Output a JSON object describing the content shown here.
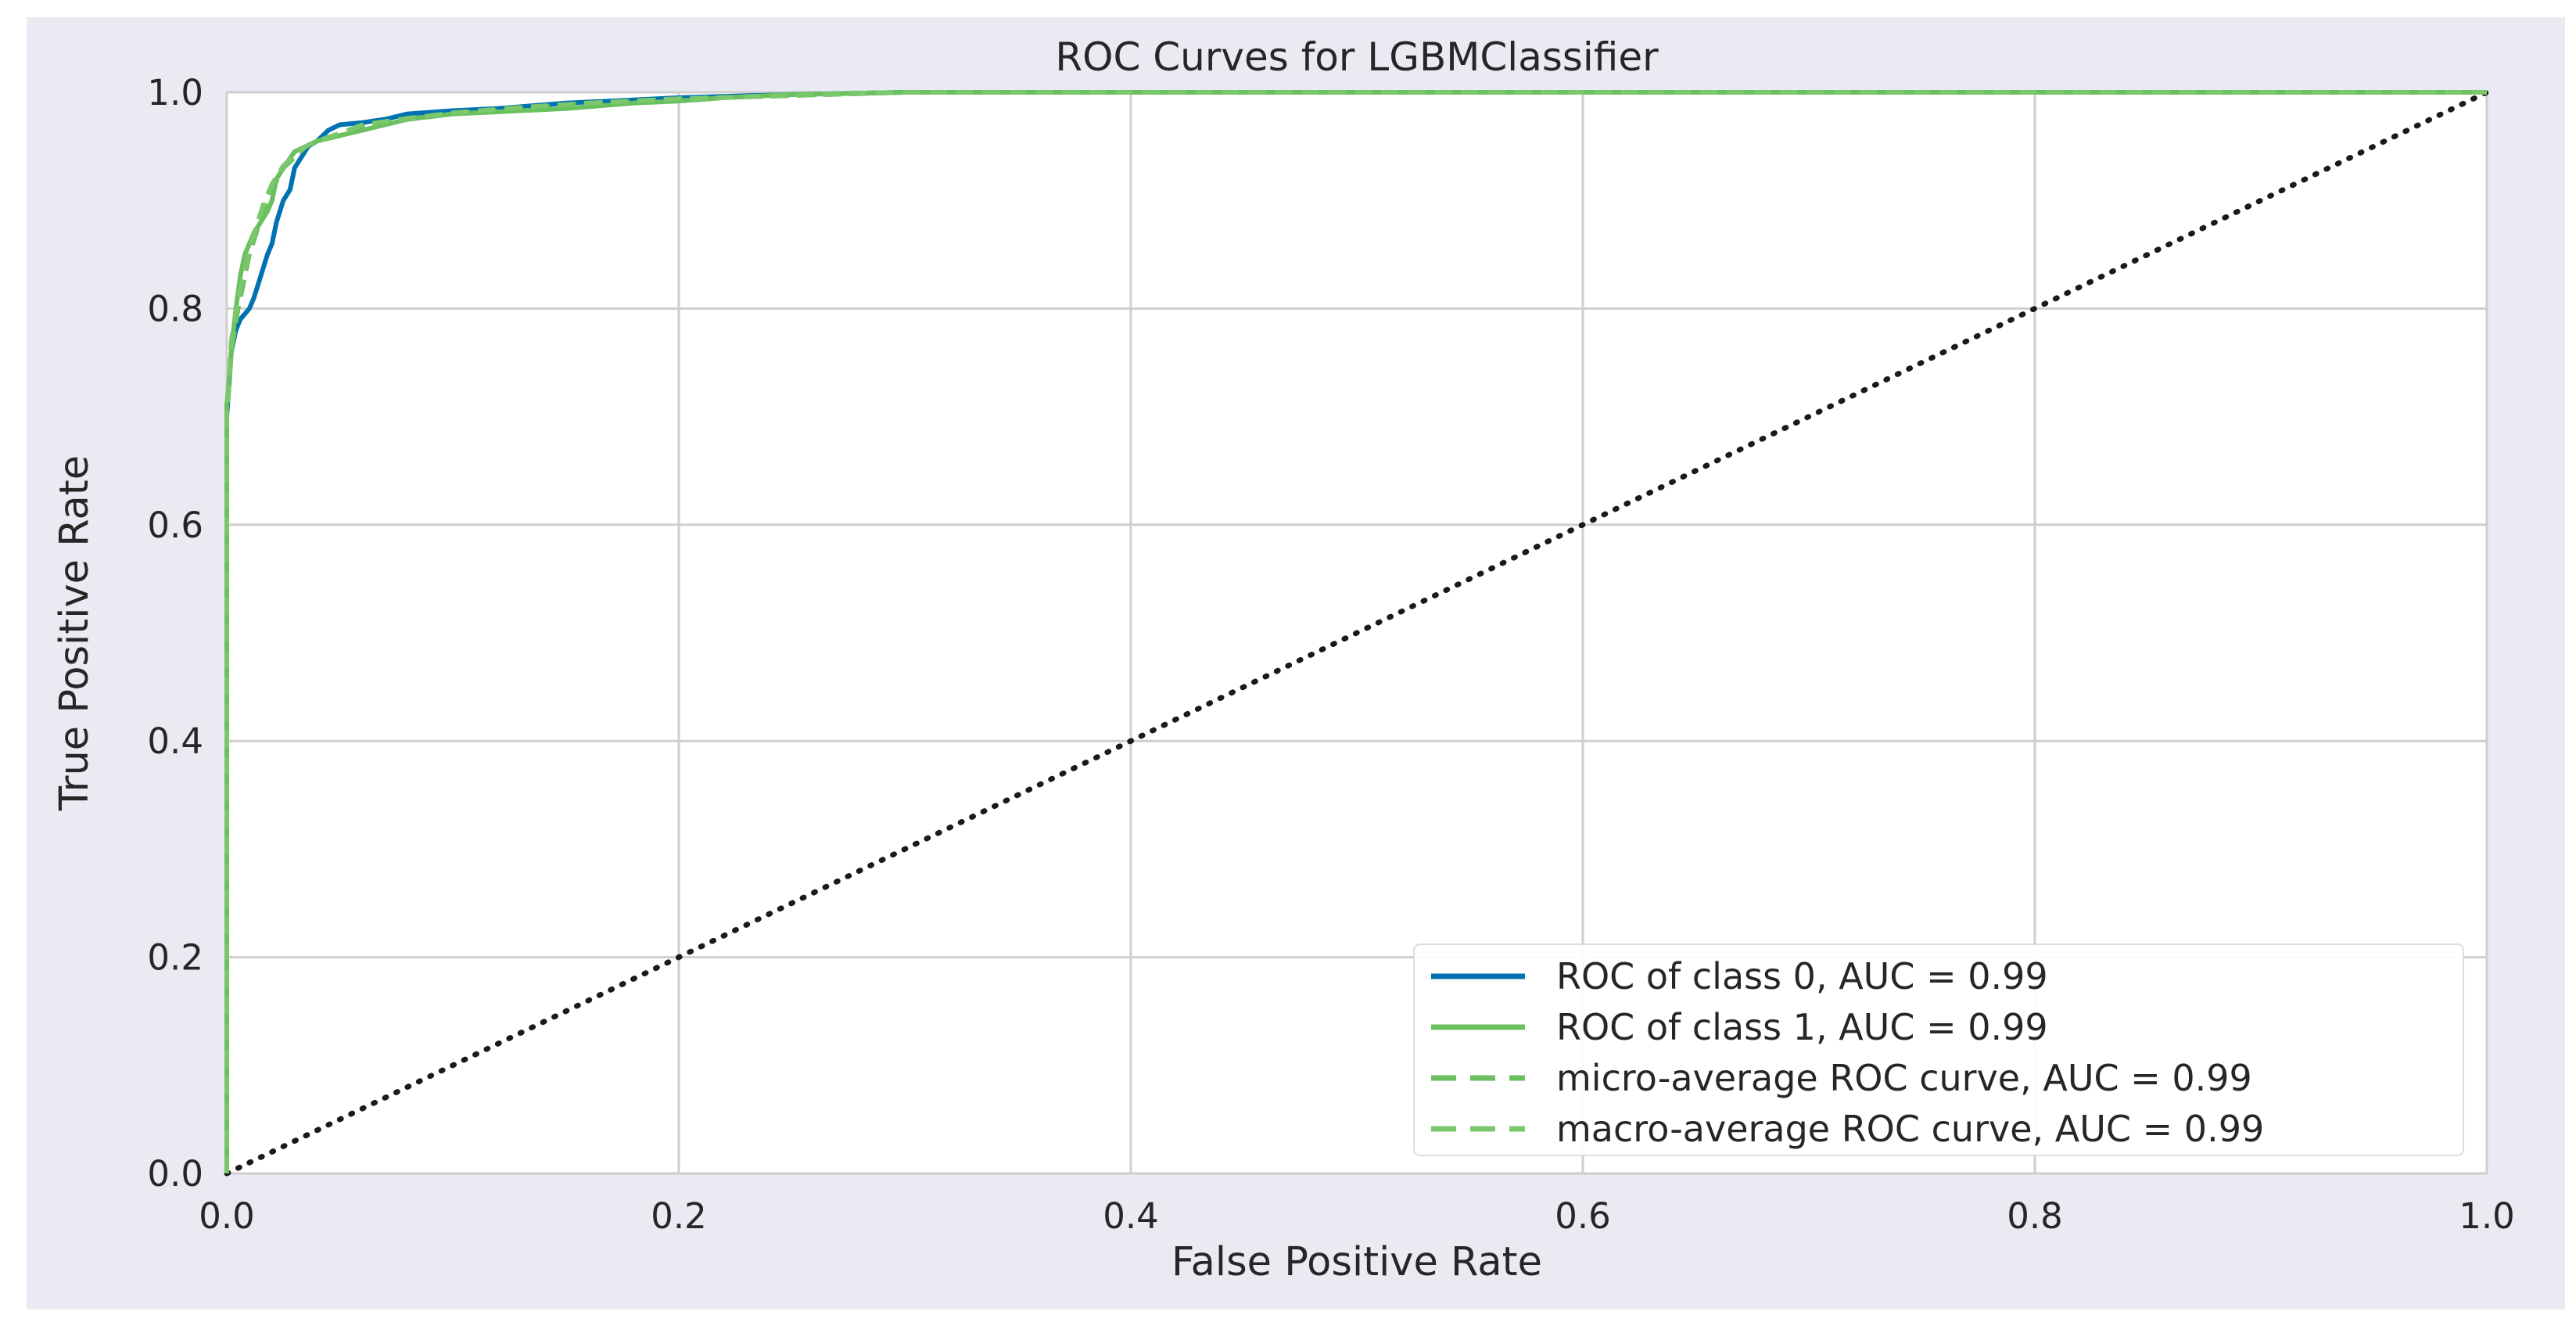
{
  "chart_data": {
    "type": "line",
    "title": "ROC Curves for LGBMClassifier",
    "xlabel": "False Positive Rate",
    "ylabel": "True Positive Rate",
    "xlim": [
      0.0,
      1.0
    ],
    "ylim": [
      0.0,
      1.0
    ],
    "x_ticks": [
      "0.0",
      "0.2",
      "0.4",
      "0.6",
      "0.8",
      "1.0"
    ],
    "y_ticks": [
      "0.0",
      "0.2",
      "0.4",
      "0.6",
      "0.8",
      "1.0"
    ],
    "grid": true,
    "legend_position": "lower-right",
    "colors": {
      "class_0": "#0072b2",
      "class_1": "#6abf5e",
      "micro": "#6abf5e",
      "macro": "#7bc86c",
      "diagonal": "#1a1a1a",
      "grid": "#cfcfcf",
      "figure_bg": "#eaeaf2"
    },
    "series": [
      {
        "name": "ROC of class 0, AUC = 0.99",
        "style": "solid",
        "x": [
          0.0,
          0.0,
          0.002,
          0.004,
          0.006,
          0.008,
          0.01,
          0.012,
          0.015,
          0.018,
          0.02,
          0.022,
          0.025,
          0.028,
          0.03,
          0.033,
          0.036,
          0.04,
          0.045,
          0.05,
          0.06,
          0.07,
          0.08,
          0.1,
          0.12,
          0.15,
          0.18,
          0.2,
          0.25,
          0.3,
          1.0
        ],
        "y": [
          0.0,
          0.7,
          0.76,
          0.78,
          0.79,
          0.795,
          0.8,
          0.81,
          0.83,
          0.85,
          0.86,
          0.88,
          0.9,
          0.91,
          0.93,
          0.94,
          0.95,
          0.955,
          0.965,
          0.97,
          0.972,
          0.975,
          0.98,
          0.983,
          0.985,
          0.99,
          0.993,
          0.995,
          0.998,
          1.0,
          1.0
        ]
      },
      {
        "name": "ROC of class 1, AUC = 0.99",
        "style": "solid",
        "x": [
          0.0,
          0.0,
          0.002,
          0.004,
          0.006,
          0.008,
          0.01,
          0.012,
          0.015,
          0.018,
          0.02,
          0.022,
          0.025,
          0.03,
          0.035,
          0.04,
          0.05,
          0.06,
          0.07,
          0.08,
          0.1,
          0.12,
          0.15,
          0.18,
          0.2,
          0.22,
          0.25,
          0.3,
          1.0
        ],
        "y": [
          0.0,
          0.71,
          0.76,
          0.8,
          0.83,
          0.85,
          0.86,
          0.87,
          0.88,
          0.89,
          0.9,
          0.92,
          0.93,
          0.945,
          0.95,
          0.955,
          0.96,
          0.965,
          0.97,
          0.975,
          0.98,
          0.982,
          0.985,
          0.99,
          0.992,
          0.995,
          0.998,
          1.0,
          1.0
        ]
      },
      {
        "name": "micro-average ROC curve, AUC = 0.99",
        "style": "dashed",
        "x": [
          0.0,
          0.0,
          0.002,
          0.005,
          0.008,
          0.01,
          0.013,
          0.016,
          0.02,
          0.025,
          0.03,
          0.035,
          0.04,
          0.05,
          0.06,
          0.08,
          0.1,
          0.13,
          0.16,
          0.2,
          0.25,
          0.3,
          1.0
        ],
        "y": [
          0.0,
          0.7,
          0.76,
          0.8,
          0.83,
          0.85,
          0.87,
          0.89,
          0.91,
          0.93,
          0.94,
          0.95,
          0.955,
          0.96,
          0.968,
          0.975,
          0.98,
          0.985,
          0.99,
          0.994,
          0.997,
          1.0,
          1.0
        ]
      },
      {
        "name": "macro-average ROC curve, AUC = 0.99",
        "style": "dashed",
        "x": [
          0.0,
          0.0,
          0.002,
          0.005,
          0.008,
          0.01,
          0.013,
          0.016,
          0.02,
          0.025,
          0.03,
          0.035,
          0.04,
          0.05,
          0.06,
          0.08,
          0.1,
          0.13,
          0.16,
          0.2,
          0.25,
          0.3,
          1.0
        ],
        "y": [
          0.0,
          0.7,
          0.77,
          0.81,
          0.835,
          0.855,
          0.875,
          0.895,
          0.915,
          0.932,
          0.942,
          0.95,
          0.955,
          0.962,
          0.97,
          0.976,
          0.981,
          0.986,
          0.99,
          0.994,
          0.997,
          1.0,
          1.0
        ]
      }
    ],
    "reference_line": {
      "style": "dotted",
      "x": [
        0.0,
        1.0
      ],
      "y": [
        0.0,
        1.0
      ]
    }
  }
}
